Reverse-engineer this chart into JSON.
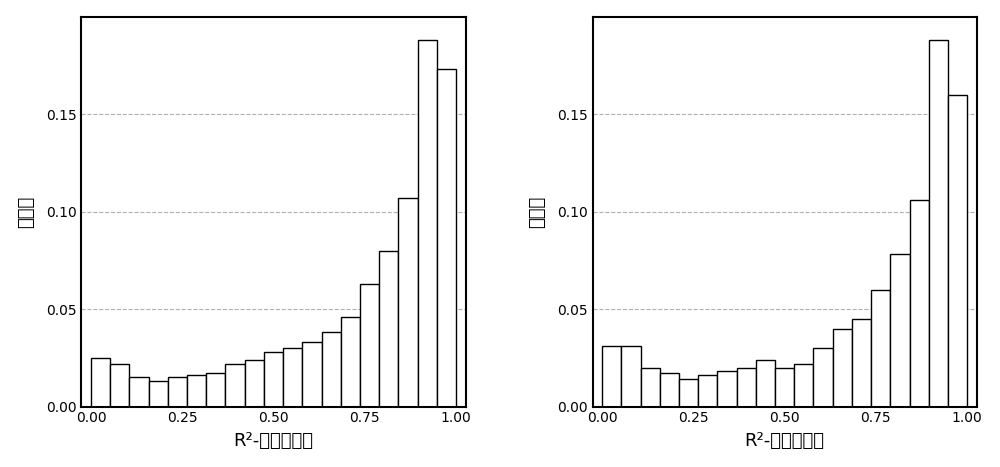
{
  "left_values": [
    0.025,
    0.022,
    0.015,
    0.013,
    0.015,
    0.016,
    0.017,
    0.022,
    0.024,
    0.028,
    0.03,
    0.033,
    0.038,
    0.046,
    0.063,
    0.08,
    0.107,
    0.188,
    0.173
  ],
  "right_values": [
    0.031,
    0.031,
    0.02,
    0.017,
    0.014,
    0.016,
    0.018,
    0.02,
    0.024,
    0.02,
    0.022,
    0.03,
    0.04,
    0.045,
    0.06,
    0.078,
    0.106,
    0.188,
    0.16
  ],
  "ylim": [
    0.0,
    0.2
  ],
  "yticks": [
    0.0,
    0.05,
    0.1,
    0.15
  ],
  "xticks": [
    0.0,
    0.25,
    0.5,
    0.75,
    1.0
  ],
  "xlabel_left": "R²-负离子模式",
  "xlabel_right": "R²-正离子模式",
  "ylabel": "百分比",
  "bar_color": "#ffffff",
  "bar_edgecolor": "#000000",
  "grid_color": "#b0b0b0",
  "n_bins": 19,
  "tick_fontsize": 10,
  "label_fontsize": 13
}
